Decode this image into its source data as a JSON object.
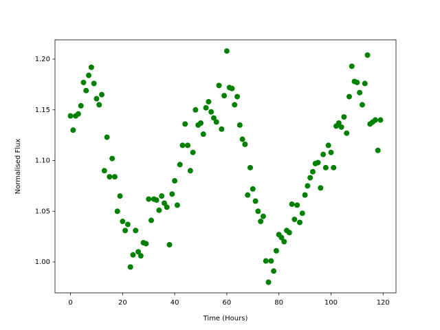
{
  "chart_data": {
    "type": "scatter",
    "xlabel": "Time (Hours)",
    "ylabel": "Normalised Flux",
    "color": "#008000",
    "xlim": [
      -5.95,
      124.95
    ],
    "ylim": [
      0.9695,
      1.219
    ],
    "xticks": [
      0,
      20,
      40,
      60,
      80,
      100,
      120
    ],
    "yticks": [
      {
        "value": 1.0,
        "label": "1.00"
      },
      {
        "value": 1.05,
        "label": "1.05"
      },
      {
        "value": 1.1,
        "label": "1.10"
      },
      {
        "value": 1.15,
        "label": "1.15"
      },
      {
        "value": 1.2,
        "label": "1.20"
      }
    ],
    "x": [
      0,
      1,
      2,
      3,
      4,
      5,
      6,
      7,
      8,
      9,
      10,
      11,
      12,
      13,
      14,
      15,
      16,
      17,
      18,
      19,
      20,
      21,
      22,
      23,
      24,
      25,
      26,
      27,
      28,
      29,
      30,
      31,
      32,
      33,
      34,
      35,
      36,
      37,
      38,
      39,
      40,
      41,
      42,
      43,
      44,
      45,
      46,
      47,
      48,
      49,
      50,
      51,
      52,
      53,
      54,
      55,
      56,
      57,
      58,
      59,
      60,
      61,
      62,
      63,
      64,
      65,
      66,
      67,
      68,
      69,
      70,
      71,
      72,
      73,
      74,
      75,
      76,
      77,
      78,
      79,
      80,
      81,
      82,
      83,
      84,
      85,
      86,
      87,
      88,
      89,
      90,
      91,
      92,
      93,
      94,
      95,
      96,
      97,
      98,
      99,
      100,
      101,
      102,
      103,
      104,
      105,
      106,
      107,
      108,
      109,
      110,
      111,
      112,
      113,
      114,
      115,
      116,
      117,
      118,
      119
    ],
    "values": [
      1.144,
      1.13,
      1.144,
      1.146,
      1.154,
      1.177,
      1.169,
      1.184,
      1.192,
      1.176,
      1.161,
      1.155,
      1.165,
      1.09,
      1.123,
      1.084,
      1.102,
      1.084,
      1.05,
      1.065,
      1.04,
      1.031,
      1.037,
      0.995,
      1.007,
      1.031,
      1.01,
      1.006,
      1.019,
      1.018,
      1.062,
      1.041,
      1.062,
      1.061,
      1.051,
      1.065,
      1.058,
      1.054,
      1.017,
      1.067,
      1.08,
      1.056,
      1.096,
      1.115,
      1.136,
      1.115,
      1.09,
      1.108,
      1.15,
      1.135,
      1.137,
      1.126,
      1.152,
      1.158,
      1.148,
      1.142,
      1.138,
      1.174,
      1.131,
      1.164,
      1.208,
      1.172,
      1.171,
      1.155,
      1.163,
      1.135,
      1.121,
      1.116,
      1.066,
      1.093,
      1.072,
      1.06,
      1.05,
      1.04,
      1.045,
      1.001,
      0.98,
      1.001,
      0.991,
      1.011,
      1.027,
      1.024,
      1.02,
      1.031,
      1.029,
      1.057,
      1.042,
      1.056,
      1.039,
      1.048,
      1.066,
      1.075,
      1.083,
      1.089,
      1.097,
      1.098,
      1.073,
      1.106,
      1.093,
      1.115,
      1.108,
      1.093,
      1.134,
      1.137,
      1.133,
      1.143,
      1.127,
      1.163,
      1.193,
      1.178,
      1.177,
      1.167,
      1.155,
      1.176,
      1.204,
      1.136,
      1.138,
      1.14,
      1.11,
      1.14
    ]
  }
}
